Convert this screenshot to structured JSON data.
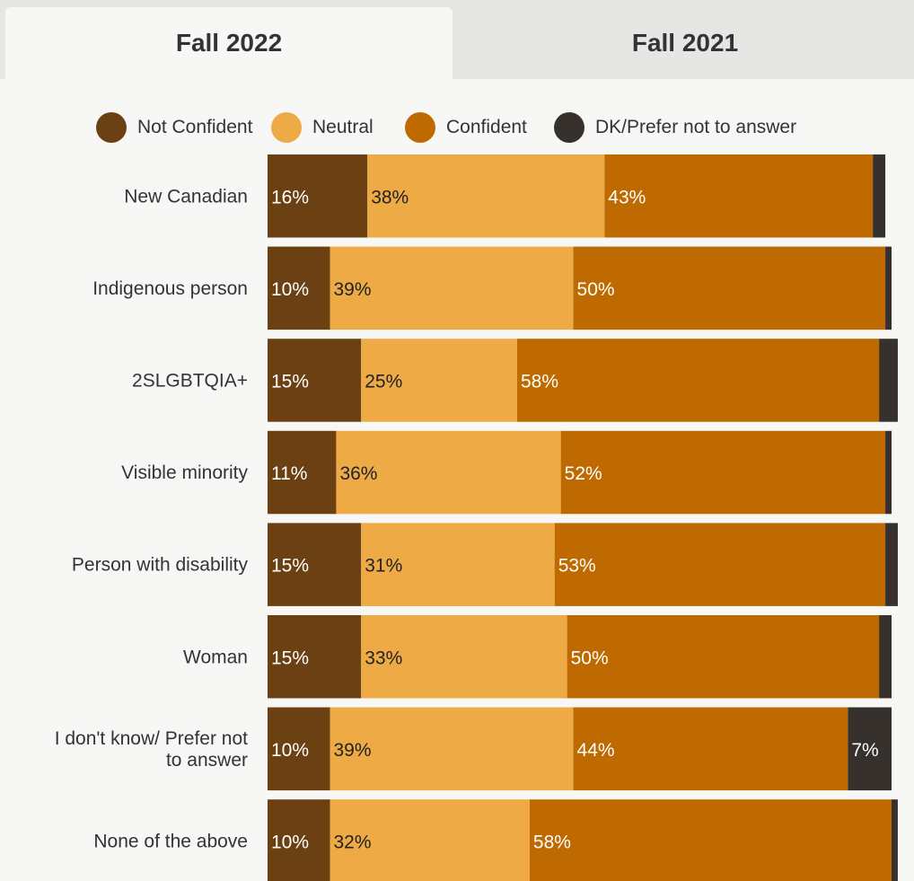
{
  "tabs": {
    "active": "Fall 2022",
    "inactive": "Fall 2021"
  },
  "legend": [
    {
      "label": "Not Confident",
      "color": "#6b4013"
    },
    {
      "label": "Neutral",
      "color": "#eeaa45"
    },
    {
      "label": "Confident",
      "color": "#bf6a00"
    },
    {
      "label": "DK/Prefer not to answer",
      "color": "#36312c"
    }
  ],
  "chart_data": {
    "type": "bar",
    "orientation": "horizontal",
    "stacked": true,
    "categories": [
      "New Canadian",
      "Indigenous person",
      "2SLGBTQIA+",
      "Visible minority",
      "Person with disability",
      "Woman",
      "I don't know/ Prefer not to answer",
      "None of the above"
    ],
    "series": [
      {
        "name": "Not Confident",
        "color": "#6b4013",
        "values": [
          16,
          10,
          15,
          11,
          15,
          15,
          10,
          10
        ],
        "labels": [
          "16%",
          "10%",
          "15%",
          "11%",
          "15%",
          "15%",
          "10%",
          "10%"
        ]
      },
      {
        "name": "Neutral",
        "color": "#eeaa45",
        "values": [
          38,
          39,
          25,
          36,
          31,
          33,
          39,
          32
        ],
        "labels": [
          "38%",
          "39%",
          "25%",
          "36%",
          "31%",
          "33%",
          "39%",
          "32%"
        ]
      },
      {
        "name": "Confident",
        "color": "#bf6a00",
        "values": [
          43,
          50,
          58,
          52,
          53,
          50,
          44,
          58
        ],
        "labels": [
          "43%",
          "50%",
          "58%",
          "52%",
          "53%",
          "50%",
          "44%",
          "58%"
        ]
      },
      {
        "name": "DK/Prefer not to answer",
        "color": "#36312c",
        "values": [
          2,
          1,
          3,
          1,
          2,
          2,
          7,
          1
        ],
        "labels": [
          "",
          "",
          "",
          "",
          "",
          "",
          "7%",
          ""
        ]
      }
    ],
    "xlim": [
      0,
      100
    ],
    "legend_position": "top"
  }
}
